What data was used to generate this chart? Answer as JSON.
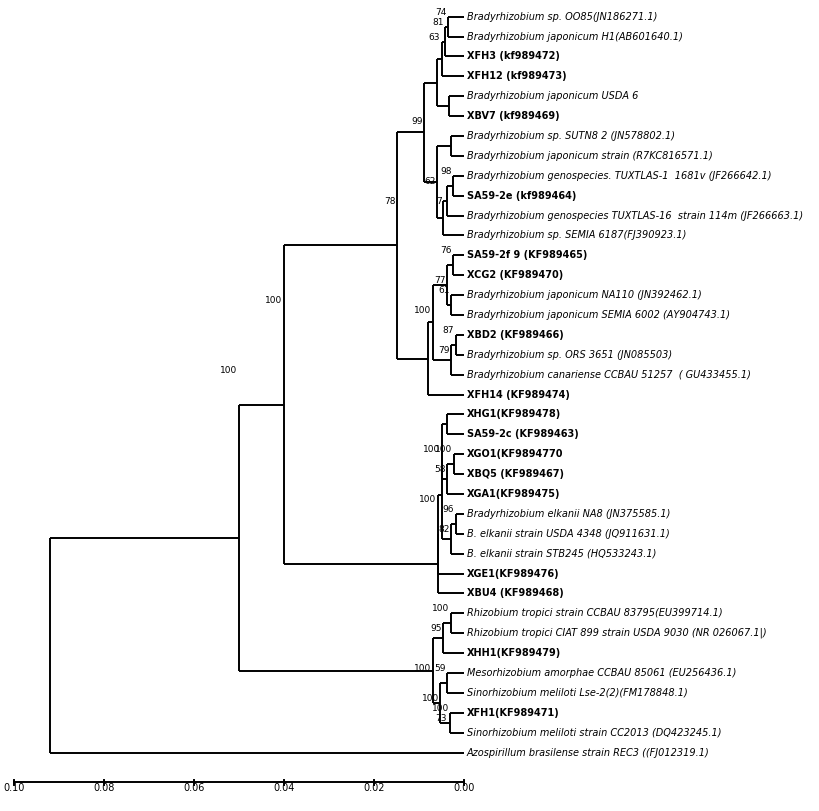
{
  "background": "white",
  "line_color": "black",
  "line_width": 1.4,
  "font_size": 7.0,
  "bs_font_size": 6.5,
  "taxa": [
    {
      "name": "Bradyrhizobium sp. OO85(JN186271.1)",
      "bold": false,
      "y": 1
    },
    {
      "name": "Bradyrhizobium japonicum H1(AB601640.1)",
      "bold": false,
      "y": 2
    },
    {
      "name": "XFH3 (kf989472)",
      "bold": true,
      "y": 3
    },
    {
      "name": "XFH12 (kf989473)",
      "bold": true,
      "y": 4
    },
    {
      "name": "Bradyrhizobium japonicum USDA 6",
      "bold": false,
      "y": 5
    },
    {
      "name": "XBV7 (kf989469)",
      "bold": true,
      "y": 6
    },
    {
      "name": "Bradyrhizobium sp. SUTN8 2 (JN578802.1)",
      "bold": false,
      "y": 7
    },
    {
      "name": "Bradyrhizobium japonicum strain (R7KC816571.1)",
      "bold": false,
      "y": 8
    },
    {
      "name": "Bradyrhizobium genospecies. TUXTLAS-1  1681v (JF266642.1)",
      "bold": false,
      "y": 9
    },
    {
      "name": "SA59-2e (kf989464)",
      "bold": true,
      "y": 10
    },
    {
      "name": "Bradyrhizobium genospecies TUXTLAS-16  strain 114m (JF266663.1)",
      "bold": false,
      "y": 11
    },
    {
      "name": "Bradyrhizobium sp. SEMIA 6187(FJ390923.1)",
      "bold": false,
      "y": 12
    },
    {
      "name": "SA59-2f 9 (KF989465)",
      "bold": true,
      "y": 13
    },
    {
      "name": "XCG2 (KF989470)",
      "bold": true,
      "y": 14
    },
    {
      "name": "Bradyrhizobium japonicum NA110 (JN392462.1)",
      "bold": false,
      "y": 15
    },
    {
      "name": "Bradyrhizobium japonicum SEMIA 6002 (AY904743.1)",
      "bold": false,
      "y": 16
    },
    {
      "name": "XBD2 (KF989466)",
      "bold": true,
      "y": 17
    },
    {
      "name": "Bradyrhizobium sp. ORS 3651 (JN085503)",
      "bold": false,
      "y": 18
    },
    {
      "name": "Bradyrhizobium canariense CCBAU 51257  ( GU433455.1)",
      "bold": false,
      "y": 19
    },
    {
      "name": "XFH14 (KF989474)",
      "bold": true,
      "y": 20
    },
    {
      "name": "XHG1(KF989478)",
      "bold": true,
      "y": 21
    },
    {
      "name": "SA59-2c (KF989463)",
      "bold": true,
      "y": 22
    },
    {
      "name": "XGO1(KF9894770",
      "bold": true,
      "y": 23
    },
    {
      "name": "XBQ5 (KF989467)",
      "bold": true,
      "y": 24
    },
    {
      "name": "XGA1(KF989475)",
      "bold": true,
      "y": 25
    },
    {
      "name": "Bradyrhizobium elkanii NA8 (JN375585.1)",
      "bold": false,
      "y": 26
    },
    {
      "name": "B. elkanii strain USDA 4348 (JQ911631.1)",
      "bold": false,
      "y": 27
    },
    {
      "name": "B. elkanii strain STB245 (HQ533243.1)",
      "bold": false,
      "y": 28
    },
    {
      "name": "XGE1(KF989476)",
      "bold": true,
      "y": 29
    },
    {
      "name": "XBU4 (KF989468)",
      "bold": true,
      "y": 30
    },
    {
      "name": "Rhizobium tropici strain CCBAU 83795(EU399714.1)",
      "bold": false,
      "y": 31
    },
    {
      "name": "Rhizobium tropici CIAT 899 strain USDA 9030 (NR 026067.1|)",
      "bold": false,
      "y": 32
    },
    {
      "name": "XHH1(KF989479)",
      "bold": true,
      "y": 33
    },
    {
      "name": "Mesorhizobium amorphae CCBAU 85061 (EU256436.1)",
      "bold": false,
      "y": 34
    },
    {
      "name": "Sinorhizobium meliloti Lse-2(2)(FM178848.1)",
      "bold": false,
      "y": 35
    },
    {
      "name": "XFH1(KF989471)",
      "bold": true,
      "y": 36
    },
    {
      "name": "Sinorhizobium meliloti strain CC2013 (DQ423245.1)",
      "bold": false,
      "y": 37
    },
    {
      "name": "Azospirillum brasilense strain REC3 ((FJ012319.1)",
      "bold": false,
      "y": 38
    }
  ]
}
